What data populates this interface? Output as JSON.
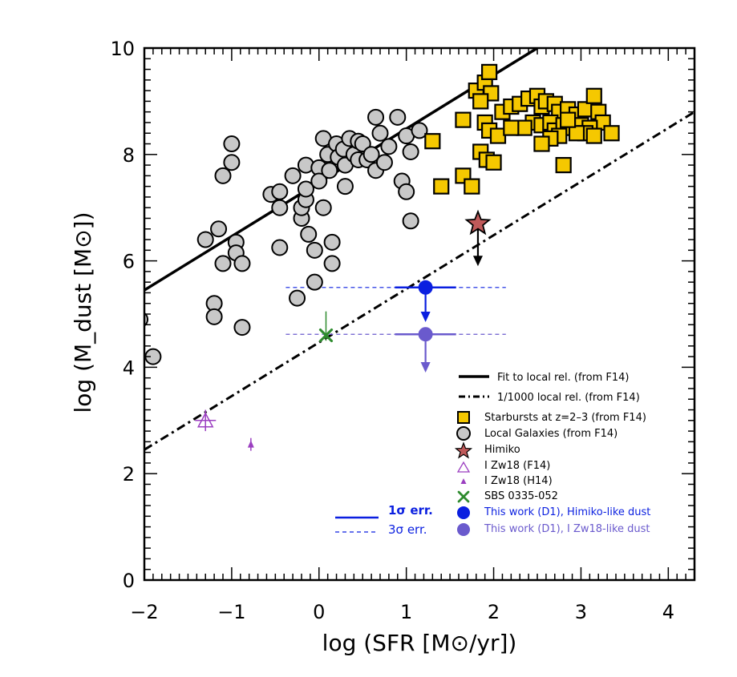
{
  "chart_data": {
    "type": "scatter",
    "xlabel": "log (SFR [M⊙/yr])",
    "ylabel": "log (M_dust [M⊙])",
    "xlim": [
      -2,
      4.3
    ],
    "ylim": [
      0,
      10
    ],
    "xticks": [
      -2,
      -1,
      0,
      1,
      2,
      3,
      4
    ],
    "yticks": [
      0,
      2,
      4,
      6,
      8,
      10
    ],
    "xtick_labels": [
      "−2",
      "−1",
      "0",
      "1",
      "2",
      "3",
      "4"
    ],
    "ytick_labels": [
      "0",
      "2",
      "4",
      "6",
      "8",
      "10"
    ],
    "legend_position": "lower-right",
    "colors": {
      "starburst_fill": "#f5c800",
      "local_fill": "#c8c8c8",
      "himiko": "#c05a5a",
      "izw18": "#9b3fc0",
      "sbs": "#2e8b2e",
      "work_himiko": "#0a1fe0",
      "work_izw18": "#6a5acd",
      "line": "#000000"
    },
    "lines": [
      {
        "name": "Fit to local rel. (from F14)",
        "style": "solid",
        "x": [
          -2,
          2.5
        ],
        "y": [
          5.45,
          10.0
        ]
      },
      {
        "name": "1/1000 local rel. (from F14)",
        "style": "dashdot",
        "x": [
          -2,
          4.3
        ],
        "y": [
          2.45,
          8.8
        ]
      }
    ],
    "series": [
      {
        "name": "Starbursts at z=2–3 (from F14)",
        "marker": "square",
        "points": [
          [
            1.3,
            8.25
          ],
          [
            1.4,
            7.4
          ],
          [
            1.65,
            7.6
          ],
          [
            1.75,
            7.4
          ],
          [
            1.65,
            8.65
          ],
          [
            1.8,
            9.2
          ],
          [
            1.9,
            9.35
          ],
          [
            1.95,
            9.55
          ],
          [
            1.97,
            9.15
          ],
          [
            1.85,
            9.0
          ],
          [
            1.85,
            8.05
          ],
          [
            1.92,
            7.9
          ],
          [
            2.0,
            7.85
          ],
          [
            1.9,
            8.6
          ],
          [
            1.95,
            8.45
          ],
          [
            2.05,
            8.35
          ],
          [
            2.1,
            8.8
          ],
          [
            2.2,
            8.9
          ],
          [
            2.3,
            8.95
          ],
          [
            2.4,
            9.05
          ],
          [
            2.5,
            9.1
          ],
          [
            2.55,
            8.9
          ],
          [
            2.6,
            9.0
          ],
          [
            2.7,
            8.95
          ],
          [
            2.75,
            8.8
          ],
          [
            2.85,
            8.85
          ],
          [
            2.95,
            8.75
          ],
          [
            3.05,
            8.85
          ],
          [
            3.15,
            9.1
          ],
          [
            3.2,
            8.8
          ],
          [
            3.25,
            8.6
          ],
          [
            3.35,
            8.4
          ],
          [
            2.45,
            8.6
          ],
          [
            2.55,
            8.55
          ],
          [
            2.65,
            8.6
          ],
          [
            2.7,
            8.45
          ],
          [
            2.8,
            8.55
          ],
          [
            2.9,
            8.5
          ],
          [
            3.0,
            8.55
          ],
          [
            3.1,
            8.5
          ],
          [
            3.05,
            8.4
          ],
          [
            2.95,
            8.4
          ],
          [
            2.75,
            8.35
          ],
          [
            2.65,
            8.3
          ],
          [
            2.55,
            8.2
          ],
          [
            2.8,
            7.8
          ],
          [
            3.15,
            8.35
          ],
          [
            2.35,
            8.5
          ],
          [
            2.2,
            8.5
          ],
          [
            2.85,
            8.65
          ]
        ]
      },
      {
        "name": "Local Galaxies (from F14)",
        "marker": "circle",
        "points": [
          [
            -2.05,
            4.9
          ],
          [
            -1.9,
            4.2
          ],
          [
            -1.3,
            6.4
          ],
          [
            -1.15,
            6.6
          ],
          [
            -1.2,
            5.2
          ],
          [
            -1.2,
            4.95
          ],
          [
            -1.1,
            7.6
          ],
          [
            -1.0,
            7.85
          ],
          [
            -1.0,
            8.2
          ],
          [
            -0.95,
            6.35
          ],
          [
            -0.95,
            6.15
          ],
          [
            -1.1,
            5.95
          ],
          [
            -0.88,
            5.95
          ],
          [
            -0.88,
            4.75
          ],
          [
            -0.55,
            7.25
          ],
          [
            -0.45,
            7.3
          ],
          [
            -0.45,
            7.0
          ],
          [
            -0.45,
            6.25
          ],
          [
            -0.3,
            7.6
          ],
          [
            -0.25,
            5.3
          ],
          [
            -0.2,
            6.8
          ],
          [
            -0.2,
            7.0
          ],
          [
            -0.15,
            7.15
          ],
          [
            -0.15,
            7.35
          ],
          [
            -0.15,
            7.8
          ],
          [
            -0.12,
            6.5
          ],
          [
            -0.05,
            6.2
          ],
          [
            -0.05,
            5.6
          ],
          [
            0.0,
            7.75
          ],
          [
            0.0,
            7.5
          ],
          [
            0.05,
            8.3
          ],
          [
            0.05,
            7.0
          ],
          [
            0.1,
            8.0
          ],
          [
            0.12,
            7.7
          ],
          [
            0.15,
            6.35
          ],
          [
            0.15,
            5.95
          ],
          [
            0.2,
            8.2
          ],
          [
            0.22,
            7.95
          ],
          [
            0.28,
            8.1
          ],
          [
            0.3,
            7.4
          ],
          [
            0.3,
            7.8
          ],
          [
            0.35,
            8.3
          ],
          [
            0.4,
            8.0
          ],
          [
            0.45,
            8.25
          ],
          [
            0.45,
            7.9
          ],
          [
            0.5,
            8.2
          ],
          [
            0.55,
            7.9
          ],
          [
            0.6,
            8.0
          ],
          [
            0.65,
            8.7
          ],
          [
            0.65,
            7.7
          ],
          [
            0.7,
            8.4
          ],
          [
            0.75,
            7.85
          ],
          [
            0.8,
            8.15
          ],
          [
            0.9,
            8.7
          ],
          [
            0.95,
            7.5
          ],
          [
            1.0,
            7.3
          ],
          [
            1.0,
            8.35
          ],
          [
            1.05,
            8.05
          ],
          [
            1.15,
            8.45
          ],
          [
            1.05,
            6.75
          ]
        ]
      },
      {
        "name": "Himiko",
        "marker": "star",
        "points": [
          [
            1.82,
            6.7
          ]
        ],
        "upper_limit": true,
        "arrow_to": 5.9
      },
      {
        "name": "I Zw18 (F14)",
        "marker": "open-triangle",
        "points": [
          [
            -1.3,
            3.0
          ]
        ],
        "xerr": 0.12,
        "yerr": 0.2
      },
      {
        "name": "I Zw18 (H14)",
        "marker": "small-triangle",
        "points": [
          [
            -0.78,
            2.55
          ]
        ],
        "yerr": 0.12
      },
      {
        "name": "SBS 0335-052",
        "marker": "cross",
        "points": [
          [
            0.08,
            4.6
          ]
        ],
        "vbar": [
          4.5,
          5.05
        ]
      },
      {
        "name": "This work (D1), Himiko-like dust",
        "marker": "filled-circle",
        "points": [
          [
            1.22,
            5.5
          ]
        ],
        "upper_limit": true,
        "arrow_to": 4.85,
        "err1_x": [
          0.87,
          1.57
        ],
        "err3_x": [
          -0.38,
          2.14
        ]
      },
      {
        "name": "This work (D1), I Zw18-like dust",
        "marker": "filled-circle",
        "points": [
          [
            1.22,
            4.62
          ]
        ],
        "upper_limit": true,
        "arrow_to": 3.9,
        "err1_x": [
          0.87,
          1.57
        ],
        "err3_x": [
          -0.38,
          2.14
        ]
      }
    ],
    "errbar_legend": {
      "one_sigma": "1σ err.",
      "three_sigma": "3σ err."
    }
  }
}
